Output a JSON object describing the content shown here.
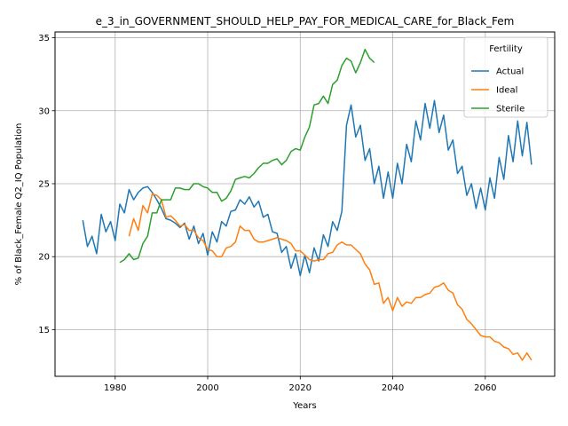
{
  "chart_data": {
    "type": "line",
    "title": "e_3_in_GOVERNMENT_SHOULD_HELP_PAY_FOR_MEDICAL_CARE_for_Black_Fem",
    "xlabel": "Years",
    "ylabel": "% of Black_Female Q2_IQ Population",
    "xlim": [
      1967,
      2075
    ],
    "ylim": [
      11.8,
      35.4
    ],
    "xticks": [
      1980,
      2000,
      2020,
      2040,
      2060
    ],
    "yticks": [
      15,
      20,
      25,
      30,
      35
    ],
    "grid": true,
    "legend": {
      "title": "Fertility",
      "placement": "top-right"
    },
    "series": [
      {
        "name": "Actual",
        "color": "#1f77b4",
        "points": [
          [
            1973,
            22.5
          ],
          [
            1974,
            20.7
          ],
          [
            1975,
            21.4
          ],
          [
            1976,
            20.2
          ],
          [
            1977,
            22.9
          ],
          [
            1978,
            21.7
          ],
          [
            1979,
            22.4
          ],
          [
            1980,
            21.1
          ],
          [
            1981,
            23.6
          ],
          [
            1982,
            23.0
          ],
          [
            1983,
            24.6
          ],
          [
            1984,
            23.9
          ],
          [
            1985,
            24.4
          ],
          [
            1986,
            24.7
          ],
          [
            1987,
            24.8
          ],
          [
            1988,
            24.4
          ],
          [
            1989,
            23.9
          ],
          [
            1990,
            23.3
          ],
          [
            1991,
            22.6
          ],
          [
            1992,
            22.5
          ],
          [
            1993,
            22.3
          ],
          [
            1994,
            22.0
          ],
          [
            1995,
            22.3
          ],
          [
            1996,
            21.2
          ],
          [
            1997,
            22.1
          ],
          [
            1998,
            20.9
          ],
          [
            1999,
            21.6
          ],
          [
            2000,
            20.1
          ],
          [
            2001,
            21.7
          ],
          [
            2002,
            21.0
          ],
          [
            2003,
            22.4
          ],
          [
            2004,
            22.1
          ],
          [
            2005,
            23.1
          ],
          [
            2006,
            23.2
          ],
          [
            2007,
            23.9
          ],
          [
            2008,
            23.6
          ],
          [
            2009,
            24.1
          ],
          [
            2010,
            23.4
          ],
          [
            2011,
            23.8
          ],
          [
            2012,
            22.7
          ],
          [
            2013,
            22.9
          ],
          [
            2014,
            21.7
          ],
          [
            2015,
            21.6
          ],
          [
            2016,
            20.3
          ],
          [
            2017,
            20.7
          ],
          [
            2018,
            19.2
          ],
          [
            2019,
            20.2
          ],
          [
            2020,
            18.7
          ],
          [
            2021,
            20.1
          ],
          [
            2022,
            18.9
          ],
          [
            2023,
            20.6
          ],
          [
            2024,
            19.7
          ],
          [
            2025,
            21.5
          ],
          [
            2026,
            20.7
          ],
          [
            2027,
            22.4
          ],
          [
            2028,
            21.8
          ],
          [
            2029,
            23.1
          ],
          [
            2030,
            29.0
          ],
          [
            2031,
            30.4
          ],
          [
            2032,
            28.2
          ],
          [
            2033,
            29.0
          ],
          [
            2034,
            26.6
          ],
          [
            2035,
            27.4
          ],
          [
            2036,
            25.0
          ],
          [
            2037,
            26.2
          ],
          [
            2038,
            24.0
          ],
          [
            2039,
            25.8
          ],
          [
            2040,
            24.0
          ],
          [
            2041,
            26.4
          ],
          [
            2042,
            25.0
          ],
          [
            2043,
            27.7
          ],
          [
            2044,
            26.5
          ],
          [
            2045,
            29.3
          ],
          [
            2046,
            28.0
          ],
          [
            2047,
            30.5
          ],
          [
            2048,
            28.8
          ],
          [
            2049,
            30.7
          ],
          [
            2050,
            28.5
          ],
          [
            2051,
            29.7
          ],
          [
            2052,
            27.3
          ],
          [
            2053,
            28.0
          ],
          [
            2054,
            25.7
          ],
          [
            2055,
            26.2
          ],
          [
            2056,
            24.2
          ],
          [
            2057,
            25.0
          ],
          [
            2058,
            23.3
          ],
          [
            2059,
            24.7
          ],
          [
            2060,
            23.2
          ],
          [
            2061,
            25.4
          ],
          [
            2062,
            24.0
          ],
          [
            2063,
            26.8
          ],
          [
            2064,
            25.3
          ],
          [
            2065,
            28.3
          ],
          [
            2066,
            26.5
          ],
          [
            2067,
            29.3
          ],
          [
            2068,
            26.9
          ],
          [
            2069,
            29.2
          ],
          [
            2070,
            26.3
          ]
        ]
      },
      {
        "name": "Ideal",
        "color": "#ff7f0e",
        "points": [
          [
            1983,
            21.4
          ],
          [
            1984,
            22.6
          ],
          [
            1985,
            21.8
          ],
          [
            1986,
            23.5
          ],
          [
            1987,
            23.0
          ],
          [
            1988,
            24.3
          ],
          [
            1989,
            24.2
          ],
          [
            1990,
            23.9
          ],
          [
            1991,
            22.7
          ],
          [
            1992,
            22.8
          ],
          [
            1993,
            22.5
          ],
          [
            1994,
            22.1
          ],
          [
            1995,
            22.2
          ],
          [
            1996,
            21.8
          ],
          [
            1997,
            21.8
          ],
          [
            1998,
            21.3
          ],
          [
            1999,
            21.1
          ],
          [
            2000,
            20.5
          ],
          [
            2001,
            20.4
          ],
          [
            2002,
            20.0
          ],
          [
            2003,
            20.0
          ],
          [
            2004,
            20.6
          ],
          [
            2005,
            20.7
          ],
          [
            2006,
            21.0
          ],
          [
            2007,
            22.1
          ],
          [
            2008,
            21.8
          ],
          [
            2009,
            21.8
          ],
          [
            2010,
            21.2
          ],
          [
            2011,
            21.0
          ],
          [
            2012,
            21.0
          ],
          [
            2013,
            21.1
          ],
          [
            2014,
            21.2
          ],
          [
            2015,
            21.3
          ],
          [
            2016,
            21.2
          ],
          [
            2017,
            21.1
          ],
          [
            2018,
            20.9
          ],
          [
            2019,
            20.4
          ],
          [
            2020,
            20.4
          ],
          [
            2021,
            20.1
          ],
          [
            2022,
            19.8
          ],
          [
            2023,
            19.7
          ],
          [
            2024,
            19.8
          ],
          [
            2025,
            19.8
          ],
          [
            2026,
            20.2
          ],
          [
            2027,
            20.3
          ],
          [
            2028,
            20.8
          ],
          [
            2029,
            21.0
          ],
          [
            2030,
            20.8
          ],
          [
            2031,
            20.8
          ],
          [
            2032,
            20.5
          ],
          [
            2033,
            20.2
          ],
          [
            2034,
            19.5
          ],
          [
            2035,
            19.1
          ],
          [
            2036,
            18.1
          ],
          [
            2037,
            18.2
          ],
          [
            2038,
            16.8
          ],
          [
            2039,
            17.2
          ],
          [
            2040,
            16.3
          ],
          [
            2041,
            17.2
          ],
          [
            2042,
            16.6
          ],
          [
            2043,
            16.9
          ],
          [
            2044,
            16.8
          ],
          [
            2045,
            17.2
          ],
          [
            2046,
            17.2
          ],
          [
            2047,
            17.4
          ],
          [
            2048,
            17.5
          ],
          [
            2049,
            17.9
          ],
          [
            2050,
            18.0
          ],
          [
            2051,
            18.2
          ],
          [
            2052,
            17.7
          ],
          [
            2053,
            17.5
          ],
          [
            2054,
            16.7
          ],
          [
            2055,
            16.4
          ],
          [
            2056,
            15.7
          ],
          [
            2057,
            15.4
          ],
          [
            2058,
            15.0
          ],
          [
            2059,
            14.6
          ],
          [
            2060,
            14.5
          ],
          [
            2061,
            14.5
          ],
          [
            2062,
            14.2
          ],
          [
            2063,
            14.1
          ],
          [
            2064,
            13.8
          ],
          [
            2065,
            13.7
          ],
          [
            2066,
            13.3
          ],
          [
            2067,
            13.4
          ],
          [
            2068,
            12.9
          ],
          [
            2069,
            13.4
          ],
          [
            2070,
            12.9
          ]
        ]
      },
      {
        "name": "Sterile",
        "color": "#2ca02c",
        "points": [
          [
            1981,
            19.6
          ],
          [
            1982,
            19.8
          ],
          [
            1983,
            20.2
          ],
          [
            1984,
            19.8
          ],
          [
            1985,
            19.9
          ],
          [
            1986,
            20.9
          ],
          [
            1987,
            21.4
          ],
          [
            1988,
            23.0
          ],
          [
            1989,
            23.0
          ],
          [
            1990,
            23.9
          ],
          [
            1991,
            23.9
          ],
          [
            1992,
            23.9
          ],
          [
            1993,
            24.7
          ],
          [
            1994,
            24.7
          ],
          [
            1995,
            24.6
          ],
          [
            1996,
            24.6
          ],
          [
            1997,
            25.0
          ],
          [
            1998,
            25.0
          ],
          [
            1999,
            24.8
          ],
          [
            2000,
            24.7
          ],
          [
            2001,
            24.4
          ],
          [
            2002,
            24.4
          ],
          [
            2003,
            23.8
          ],
          [
            2004,
            24.0
          ],
          [
            2005,
            24.5
          ],
          [
            2006,
            25.3
          ],
          [
            2007,
            25.4
          ],
          [
            2008,
            25.5
          ],
          [
            2009,
            25.4
          ],
          [
            2010,
            25.7
          ],
          [
            2011,
            26.1
          ],
          [
            2012,
            26.4
          ],
          [
            2013,
            26.4
          ],
          [
            2014,
            26.6
          ],
          [
            2015,
            26.7
          ],
          [
            2016,
            26.3
          ],
          [
            2017,
            26.6
          ],
          [
            2018,
            27.2
          ],
          [
            2019,
            27.4
          ],
          [
            2020,
            27.3
          ],
          [
            2021,
            28.2
          ],
          [
            2022,
            28.9
          ],
          [
            2023,
            30.4
          ],
          [
            2024,
            30.5
          ],
          [
            2025,
            31.0
          ],
          [
            2026,
            30.5
          ],
          [
            2027,
            31.8
          ],
          [
            2028,
            32.1
          ],
          [
            2029,
            33.1
          ],
          [
            2030,
            33.6
          ],
          [
            2031,
            33.4
          ],
          [
            2032,
            32.6
          ],
          [
            2033,
            33.3
          ],
          [
            2034,
            34.2
          ],
          [
            2035,
            33.6
          ],
          [
            2036,
            33.3
          ]
        ]
      }
    ]
  }
}
